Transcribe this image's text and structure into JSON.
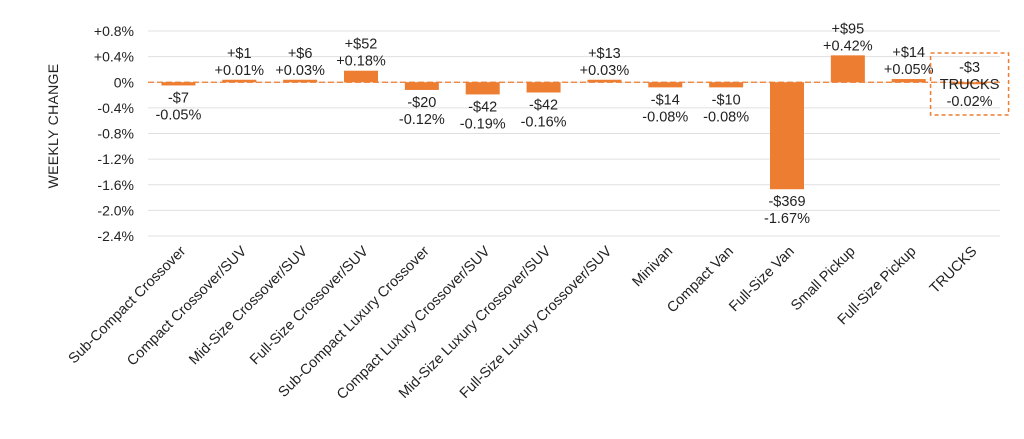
{
  "chart_data": {
    "type": "bar",
    "ylabel": "WEEKLY CHANGE",
    "ylim": [
      -2.4,
      0.8
    ],
    "yticks": [
      0.8,
      0.4,
      0,
      -0.4,
      -0.8,
      -1.2,
      -1.6,
      -2.0,
      -2.4
    ],
    "ytick_labels": [
      "+0.8%",
      "+0.4%",
      "0%",
      "-0.4%",
      "-0.8%",
      "-1.2%",
      "-1.6%",
      "-2.0%",
      "-2.4%"
    ],
    "grid": true,
    "bar_color": "#ED7D31",
    "highlight_color": "#ED7D31",
    "categories": [
      "Sub-Compact Crossover",
      "Compact Crossover/SUV",
      "Mid-Size Crossover/SUV",
      "Full-Size Crossover/SUV",
      "Sub-Compact Luxury Crossover",
      "Compact Luxury Crossover/SUV",
      "Mid-Size Luxury Crossover/SUV",
      "Full-Size Luxury Crossover/SUV",
      "Minivan",
      "Compact Van",
      "Full-Size Van",
      "Small Pickup",
      "Full-Size Pickup",
      "TRUCKS"
    ],
    "values": [
      -0.05,
      0.01,
      0.03,
      0.18,
      -0.12,
      -0.19,
      -0.16,
      0.03,
      -0.08,
      -0.08,
      -1.67,
      0.42,
      0.05,
      -0.02
    ],
    "dollar_labels": [
      "-$7",
      "+$1",
      "+$6",
      "+$52",
      "-$20",
      "-$42",
      "-$42",
      "+$13",
      "-$14",
      "-$10",
      "-$369",
      "+$95",
      "+$14",
      "-$3"
    ],
    "percent_labels": [
      "-0.05%",
      "+0.01%",
      "+0.03%",
      "+0.18%",
      "-0.12%",
      "-0.19%",
      "-0.16%",
      "+0.03%",
      "-0.08%",
      "-0.08%",
      "-1.67%",
      "+0.42%",
      "+0.05%",
      "-0.02%"
    ],
    "highlight": {
      "category_index": 13,
      "dollar": "-$3",
      "name": "TRUCKS",
      "percent": "-0.02%"
    }
  }
}
